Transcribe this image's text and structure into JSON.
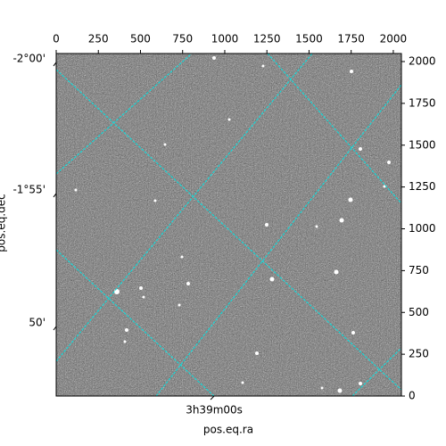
{
  "chart_data": {
    "type": "image",
    "xlabel": "pos.eq.ra",
    "ylabel": "pos.eq.dec",
    "xlim": [
      0,
      2048
    ],
    "ylim": [
      0,
      2048
    ],
    "xticks": [
      0,
      250,
      500,
      750,
      1000,
      1250,
      1500,
      1750,
      2000
    ],
    "yticks": [
      0,
      250,
      500,
      750,
      1000,
      1250,
      1500,
      1750,
      2000
    ],
    "world_xticks": [
      {
        "value": 937,
        "label": "3h39m00s"
      }
    ],
    "world_yticks": [
      {
        "value": 1995,
        "label": "-2°00'"
      },
      {
        "value": 1211,
        "label": "-1°55'"
      },
      {
        "value": 416,
        "label": "50'"
      }
    ],
    "grid_color": "#00e5e5"
  }
}
